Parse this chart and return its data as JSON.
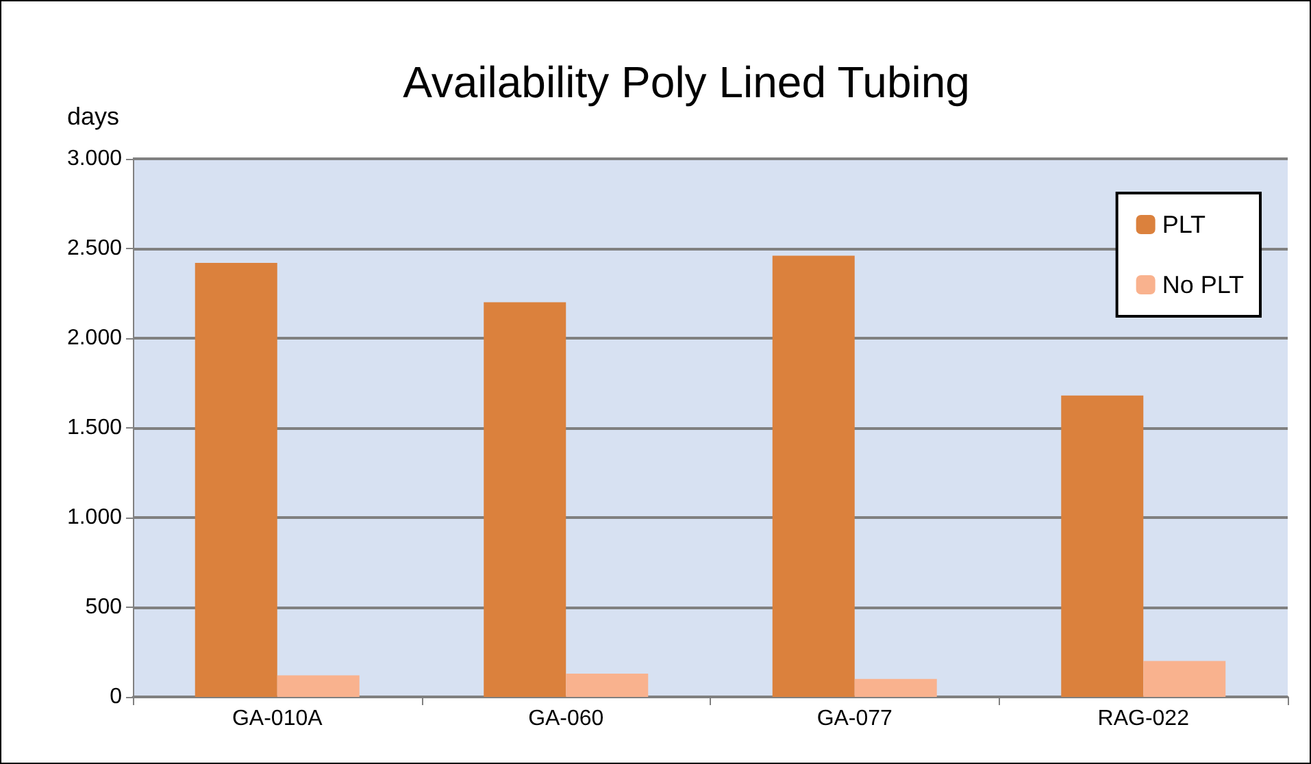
{
  "chart_data": {
    "type": "bar",
    "title": "Availability Poly Lined Tubing",
    "ylabel": "days",
    "categories": [
      "GA-010A",
      "GA-060",
      "GA-077",
      "RAG-022"
    ],
    "series": [
      {
        "name": "PLT",
        "color": "#db813d",
        "values": [
          2420,
          2200,
          2460,
          1680
        ]
      },
      {
        "name": "No PLT",
        "color": "#f9b28e",
        "values": [
          120,
          130,
          100,
          200
        ]
      }
    ],
    "ylim": [
      0,
      3000
    ],
    "yticks": [
      0,
      500,
      {
        "value": 1000,
        "label": "1.000"
      },
      {
        "value": 1500,
        "label": "1.500"
      },
      {
        "value": 2000,
        "label": "2.000"
      },
      {
        "value": 2500,
        "label": "2.500"
      },
      {
        "value": 3000,
        "label": "3.000"
      }
    ],
    "grid": "y",
    "legend": "top right"
  }
}
